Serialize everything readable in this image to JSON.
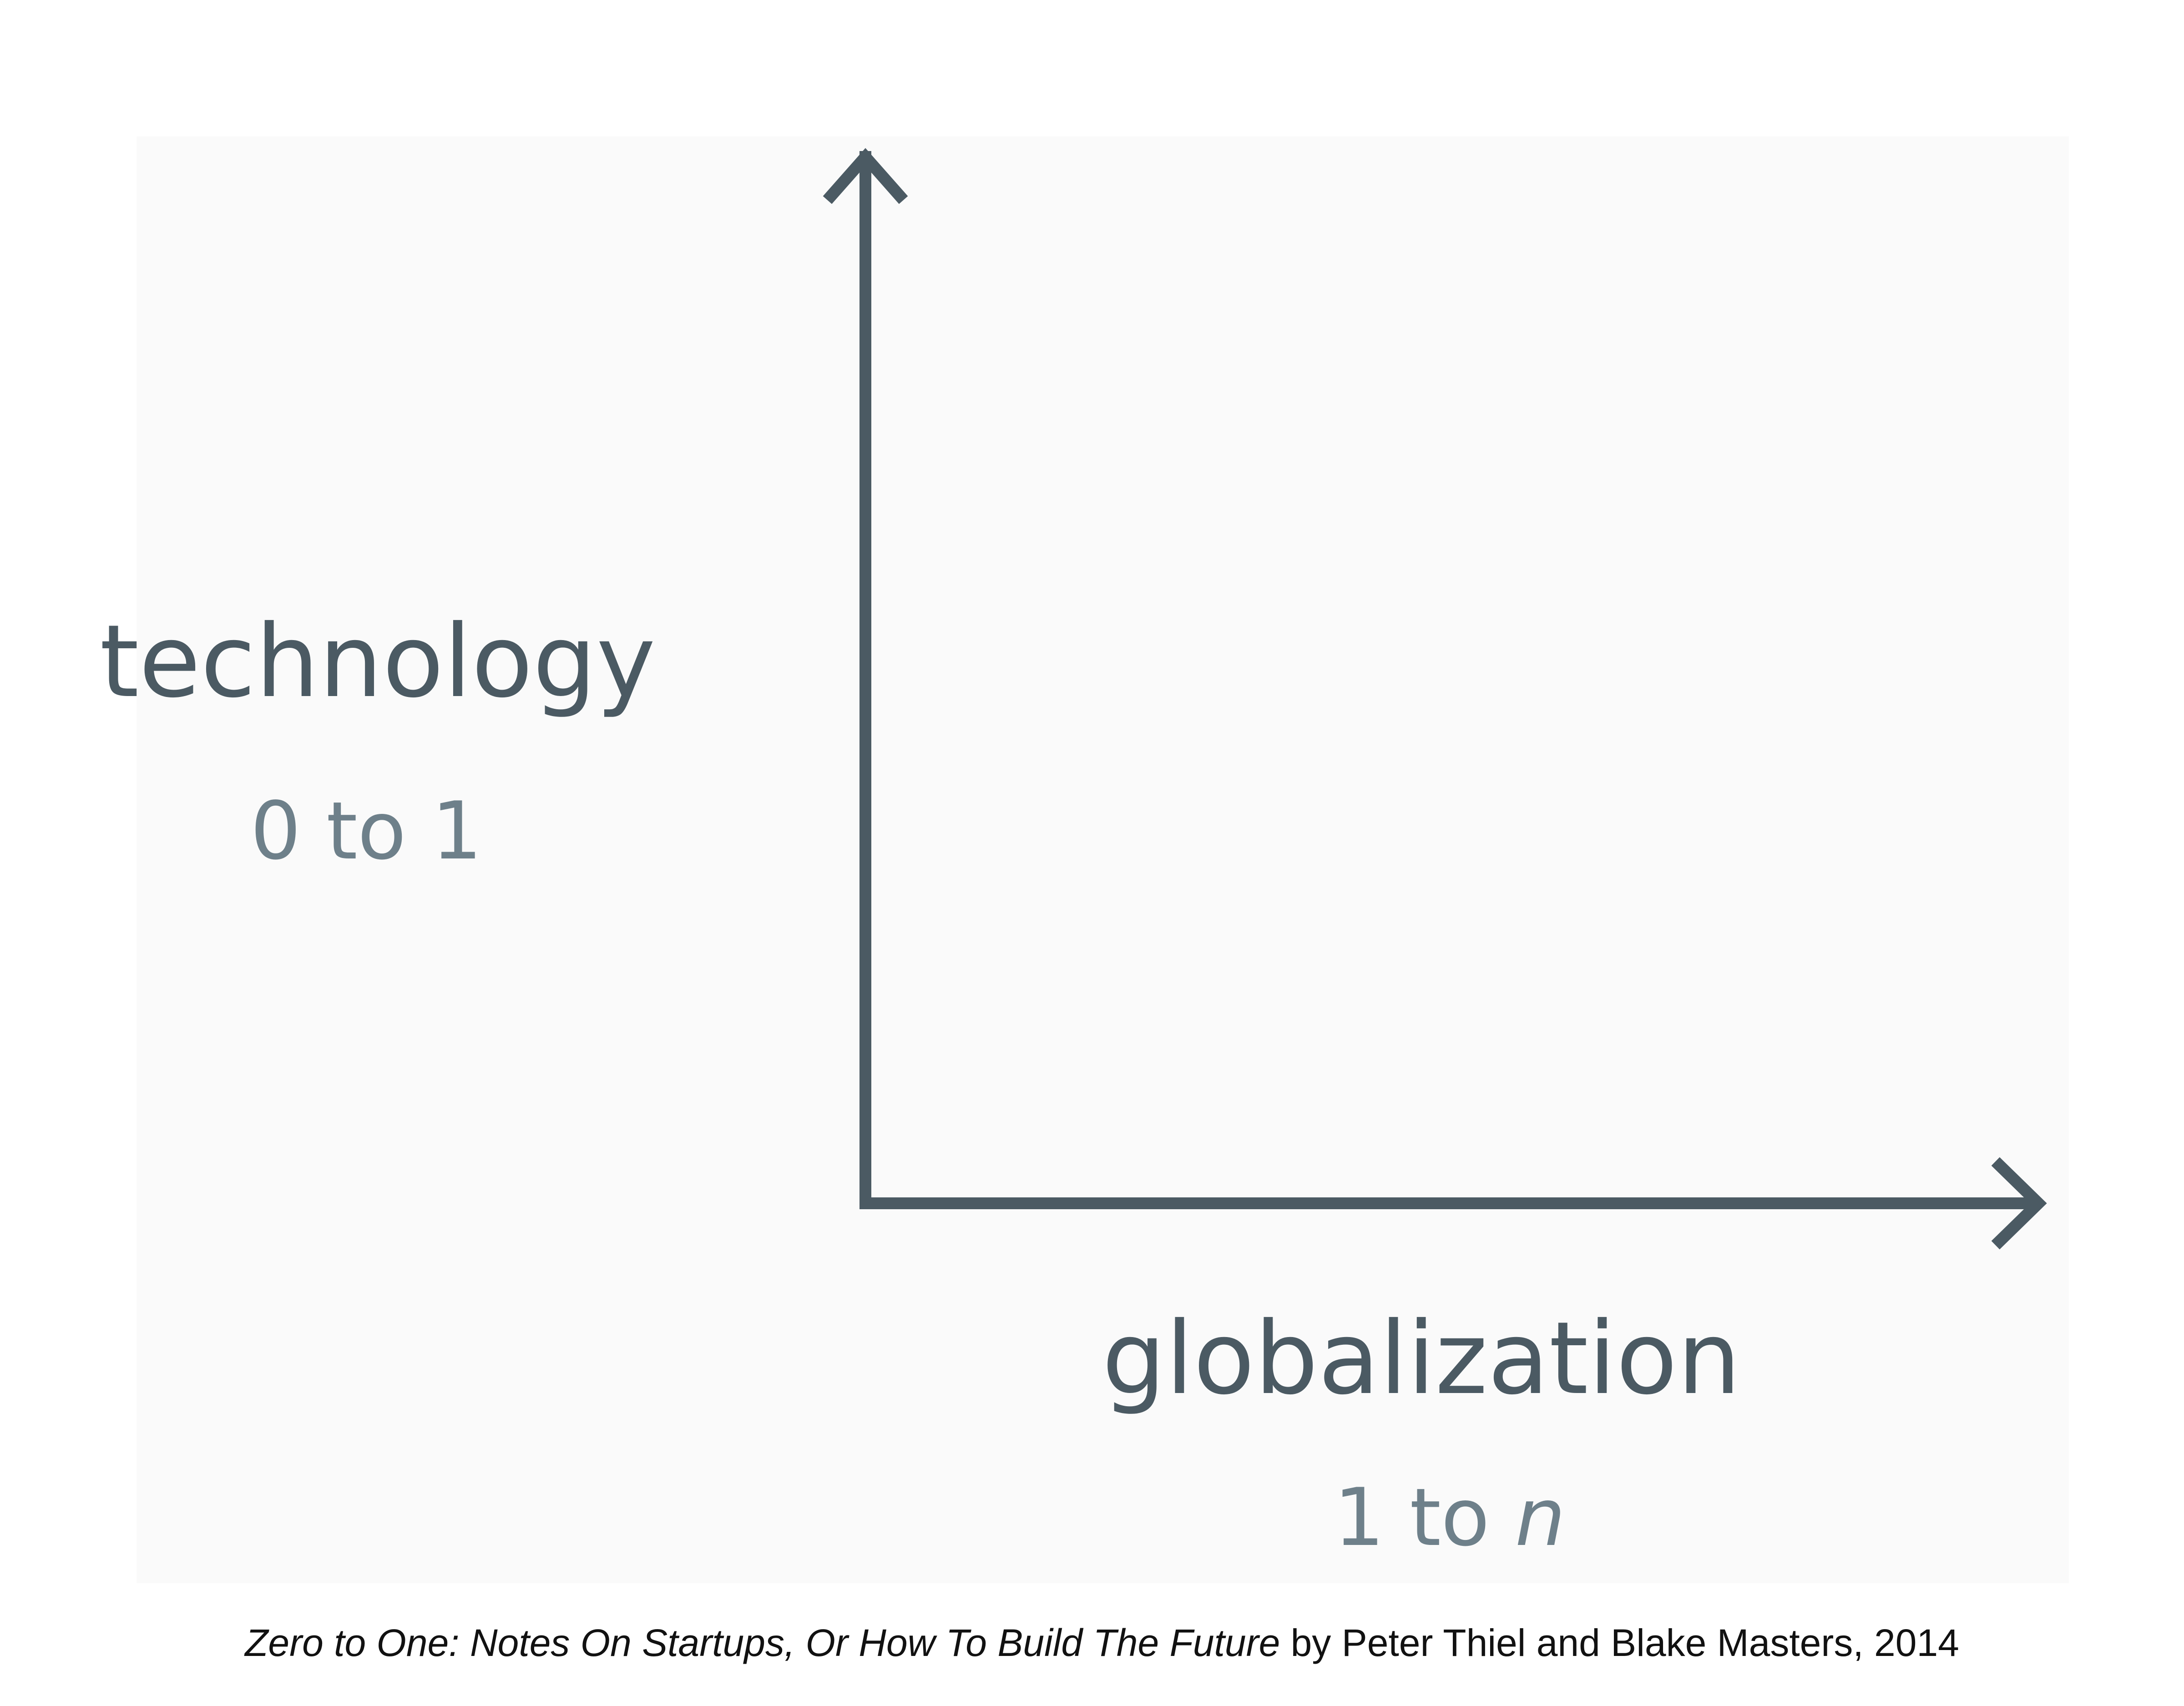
{
  "diagram": {
    "y_axis": {
      "label": "technology",
      "sublabel": "0 to 1"
    },
    "x_axis": {
      "label": "globalization",
      "sublabel_prefix": "1 to",
      "sublabel_variable": "n"
    }
  },
  "caption": {
    "title": "Zero to One: Notes On Startups, Or How To Build The Future",
    "byline": "by Peter Thiel and Blake Masters, 2014"
  }
}
